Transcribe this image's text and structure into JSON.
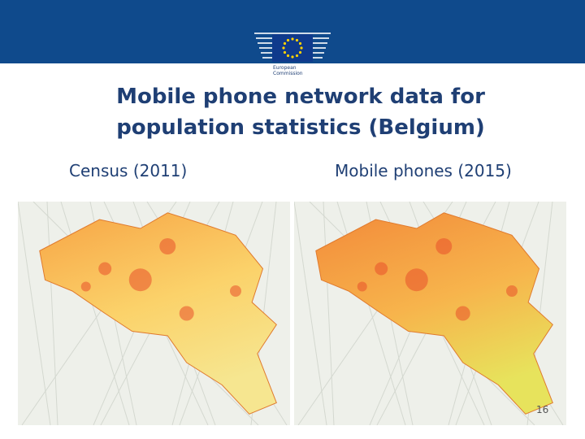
{
  "header": {
    "logo_text": "European Commission"
  },
  "title": "Mobile phone network data for population statistics (Belgium)",
  "panels": [
    {
      "label": "Census (2011)"
    },
    {
      "label": "Mobile phones (2015)"
    }
  ],
  "page_number": "16"
}
